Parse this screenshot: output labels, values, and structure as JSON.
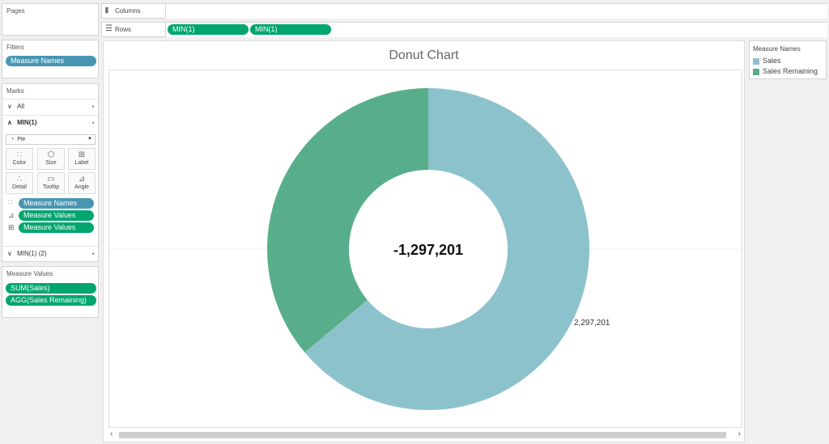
{
  "pages": {
    "title": "Pages"
  },
  "filters": {
    "title": "Filters",
    "pill": "Measure Names"
  },
  "marks": {
    "title": "Marks",
    "all_label": "All",
    "min1_label": "MIN(1)",
    "mark_type": "Pie",
    "buttons": {
      "color": "Color",
      "size": "Size",
      "label": "Label",
      "detail": "Detail",
      "tooltip": "Tooltip",
      "angle": "Angle"
    },
    "pills": [
      "Measure Names",
      "Measure Values",
      "Measure Values"
    ],
    "min1_2_label": "MIN(1) (2)"
  },
  "measure_values": {
    "title": "Measure Values",
    "pills": [
      "SUM(Sales)",
      "AGG(Sales Remaining)"
    ]
  },
  "shelves": {
    "columns_label": "Columns",
    "rows_label": "Rows",
    "row_pills": [
      "MIN(1)",
      "MIN(1)"
    ]
  },
  "legend": {
    "title": "Measure Names",
    "items": [
      {
        "label": "Sales",
        "color": "#8cc2cb"
      },
      {
        "label": "Sales Remaining",
        "color": "#58ae8a"
      }
    ]
  },
  "icons": {
    "columns": "columns-icon",
    "rows": "rows-icon",
    "pie": "pie-icon",
    "scroll_left": "chevron-left-icon",
    "scroll_right": "chevron-right-icon"
  },
  "chart_data": {
    "type": "pie",
    "title": "Donut Chart",
    "center_label": "-1,297,201",
    "slices": [
      {
        "name": "Sales",
        "value": 2297201,
        "label": "2,297,201",
        "color": "#8cc2cb"
      },
      {
        "name": "Sales Remaining",
        "value": 1297201,
        "color": "#58ae8a"
      }
    ]
  }
}
